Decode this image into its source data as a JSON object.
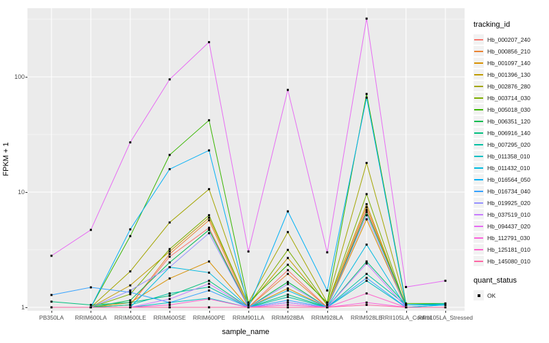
{
  "axes": {
    "x_title": "sample_name",
    "y_title": "FPKM + 1",
    "y_tick_labels": [
      "100",
      "10",
      "1"
    ]
  },
  "legend": {
    "tracking_title": "tracking_id",
    "quant_title": "quant_status",
    "quant_item": "OK"
  },
  "chart_data": {
    "type": "line",
    "title": "",
    "xlabel": "sample_name",
    "ylabel": "FPKM + 1",
    "y_scale": "log10",
    "y_ticks": [
      1,
      10,
      100
    ],
    "y_minor_gridlines": [
      3.162,
      31.62,
      316.2
    ],
    "ylim": [
      0.93,
      420
    ],
    "grid": "white-on-gray",
    "legend_position": "right",
    "point_marker": "black-square",
    "categories": [
      "PB350LA",
      "RRIM600LA",
      "RRIM600LE",
      "RRIM600SE",
      "RRIM600PE",
      "RRIM901LA",
      "RRIM928BA",
      "RRIM928LA",
      "RRIM928LE",
      "RRII105LA_Control",
      "RRII105LA_Stressed"
    ],
    "series": [
      {
        "name": "Hb_000207_240",
        "color": "#F8766D",
        "values": [
          1.0,
          1.0,
          1.05,
          2.75,
          4.9,
          1.0,
          2.1,
          1.0,
          7.0,
          1.0,
          1.0
        ]
      },
      {
        "name": "Hb_000856_210",
        "color": "#EA8331",
        "values": [
          1.0,
          1.0,
          1.05,
          2.9,
          5.7,
          1.0,
          1.95,
          1.0,
          7.4,
          1.0,
          1.0
        ]
      },
      {
        "name": "Hb_001097_140",
        "color": "#D89000",
        "values": [
          1.0,
          1.0,
          1.1,
          1.78,
          2.5,
          1.0,
          1.46,
          1.0,
          5.8,
          1.0,
          1.0
        ]
      },
      {
        "name": "Hb_001396_130",
        "color": "#C09B00",
        "values": [
          1.0,
          1.0,
          1.55,
          3.05,
          6.0,
          1.05,
          2.68,
          1.05,
          7.85,
          1.0,
          1.0
        ]
      },
      {
        "name": "Hb_002876_280",
        "color": "#A3A500",
        "values": [
          1.0,
          1.0,
          2.05,
          5.45,
          10.6,
          1.1,
          4.5,
          1.1,
          17.9,
          1.05,
          1.05
        ]
      },
      {
        "name": "Hb_003714_030",
        "color": "#7CAE00",
        "values": [
          1.0,
          1.0,
          1.3,
          3.2,
          6.3,
          1.05,
          3.15,
          1.05,
          9.6,
          1.0,
          1.0
        ]
      },
      {
        "name": "Hb_005018_030",
        "color": "#39B600",
        "values": [
          1.0,
          1.0,
          4.15,
          21.0,
          42.0,
          1.1,
          2.34,
          1.1,
          71.0,
          1.08,
          1.08
        ]
      },
      {
        "name": "Hb_006351_120",
        "color": "#00BB4E",
        "values": [
          1.0,
          1.0,
          1.15,
          2.45,
          4.7,
          1.0,
          1.66,
          1.0,
          6.7,
          1.05,
          1.05
        ]
      },
      {
        "name": "Hb_006916_140",
        "color": "#00BF7D",
        "values": [
          1.12,
          1.05,
          1.1,
          1.26,
          1.7,
          1.0,
          1.29,
          1.0,
          2.5,
          1.05,
          1.08
        ]
      },
      {
        "name": "Hb_007295_020",
        "color": "#00C1A3",
        "values": [
          1.0,
          1.0,
          1.05,
          1.32,
          1.5,
          1.0,
          1.23,
          1.0,
          1.95,
          1.05,
          1.07
        ]
      },
      {
        "name": "Hb_011358_010",
        "color": "#00BFC4",
        "values": [
          1.0,
          1.0,
          1.0,
          1.1,
          1.2,
          1.0,
          1.1,
          1.0,
          1.7,
          1.0,
          1.05
        ]
      },
      {
        "name": "Hb_011432_010",
        "color": "#00BAE0",
        "values": [
          1.0,
          1.0,
          1.0,
          2.23,
          2.0,
          1.0,
          1.4,
          1.0,
          3.5,
          1.0,
          1.05
        ]
      },
      {
        "name": "Hb_016564_050",
        "color": "#00B0F6",
        "values": [
          1.0,
          1.0,
          4.75,
          15.8,
          23.0,
          1.0,
          6.8,
          1.4,
          66.0,
          1.05,
          1.05
        ]
      },
      {
        "name": "Hb_016734_040",
        "color": "#35A2FF",
        "values": [
          1.28,
          1.49,
          1.35,
          1.1,
          1.4,
          1.0,
          1.15,
          1.0,
          1.8,
          1.0,
          1.0
        ]
      },
      {
        "name": "Hb_019925_020",
        "color": "#9590FF",
        "values": [
          1.0,
          1.0,
          1.4,
          2.23,
          4.4,
          1.0,
          1.59,
          1.0,
          6.3,
          1.0,
          1.0
        ]
      },
      {
        "name": "Hb_037519_010",
        "color": "#C77CFF",
        "values": [
          1.0,
          1.0,
          1.0,
          1.18,
          1.6,
          1.0,
          1.1,
          1.0,
          2.4,
          1.0,
          1.0
        ]
      },
      {
        "name": "Hb_094437_020",
        "color": "#E76BF3",
        "values": [
          2.8,
          4.7,
          27.0,
          95.0,
          200.0,
          3.05,
          77.0,
          3.0,
          320.0,
          1.5,
          1.7
        ]
      },
      {
        "name": "Hb_112791_030",
        "color": "#FA62DB",
        "values": [
          1.0,
          1.0,
          1.0,
          1.0,
          1.0,
          1.0,
          1.0,
          1.0,
          1.1,
          1.0,
          1.0
        ]
      },
      {
        "name": "Hb_125181_010",
        "color": "#FF61CC",
        "values": [
          1.0,
          1.0,
          1.0,
          1.05,
          1.18,
          1.0,
          1.05,
          1.0,
          1.32,
          1.0,
          1.0
        ]
      },
      {
        "name": "Hb_145080_010",
        "color": "#FF67A4",
        "values": [
          1.0,
          1.0,
          1.0,
          1.0,
          1.0,
          1.0,
          1.0,
          1.0,
          1.05,
          1.0,
          1.0
        ]
      }
    ]
  }
}
